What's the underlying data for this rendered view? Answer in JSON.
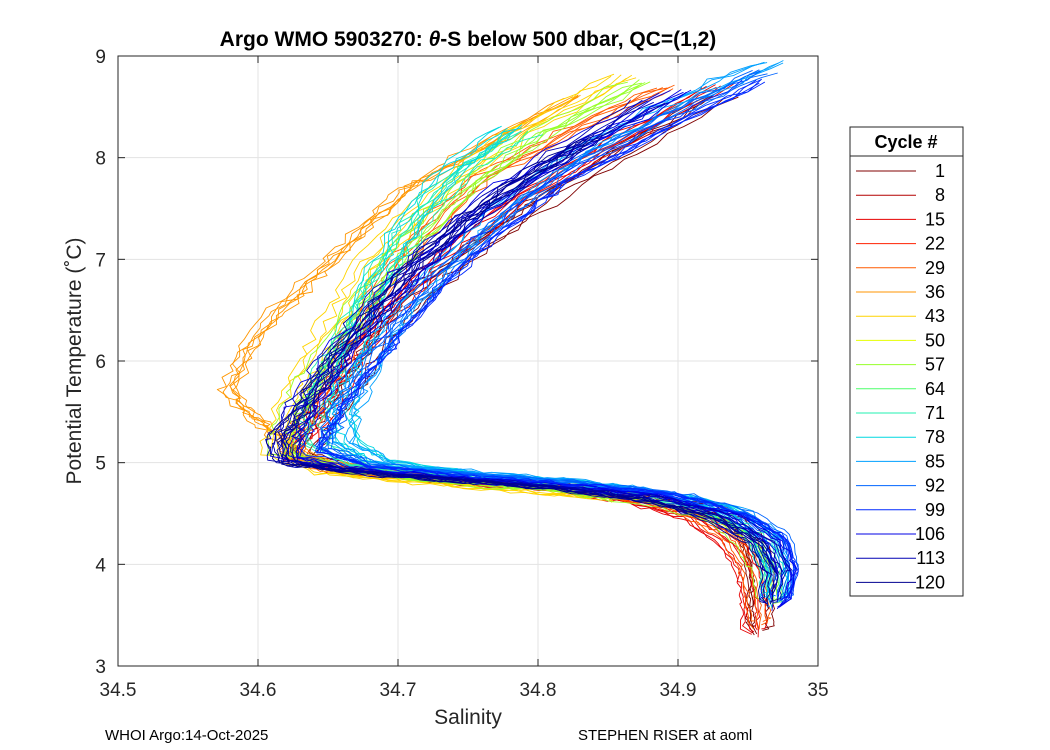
{
  "chart_data": {
    "type": "line",
    "title": "Argo WMO 5903270: θ-S below 500 dbar,  QC=(1,2)",
    "title_prefix": "Argo WMO 5903270: ",
    "title_theta": "θ",
    "title_suffix": "-S below 500 dbar,  QC=(1,2)",
    "xlabel": "Salinity",
    "ylabel": "Potential Temperature (˚C)",
    "xlim": [
      34.5,
      35.0
    ],
    "ylim": [
      3,
      9
    ],
    "xticks": [
      "34.5",
      "34.6",
      "34.7",
      "34.8",
      "34.9",
      "35"
    ],
    "yticks": [
      "3",
      "4",
      "5",
      "6",
      "7",
      "8",
      "9"
    ],
    "grid": true,
    "legend_title": "Cycle #",
    "legend_position": "right-outside",
    "legend": [
      {
        "label": "1",
        "color": "#800000"
      },
      {
        "label": "8",
        "color": "#b40000"
      },
      {
        "label": "15",
        "color": "#e60000"
      },
      {
        "label": "22",
        "color": "#ff2000"
      },
      {
        "label": "29",
        "color": "#ff5a00"
      },
      {
        "label": "36",
        "color": "#ff9600"
      },
      {
        "label": "43",
        "color": "#ffd400"
      },
      {
        "label": "50",
        "color": "#e6ff00"
      },
      {
        "label": "57",
        "color": "#96ff2a"
      },
      {
        "label": "64",
        "color": "#4cff6a"
      },
      {
        "label": "71",
        "color": "#22f0b0"
      },
      {
        "label": "78",
        "color": "#00d8e0"
      },
      {
        "label": "85",
        "color": "#00a0ff"
      },
      {
        "label": "92",
        "color": "#0064ff"
      },
      {
        "label": "99",
        "color": "#0028ff"
      },
      {
        "label": "106",
        "color": "#0000e6"
      },
      {
        "label": "113",
        "color": "#0000b4"
      },
      {
        "label": "120",
        "color": "#000090"
      }
    ],
    "groups": [
      {
        "color": "#800000",
        "points": [
          [
            34.93,
            8.6
          ],
          [
            34.86,
            8.05
          ],
          [
            34.8,
            7.55
          ],
          [
            34.75,
            7.05
          ],
          [
            34.71,
            6.6
          ],
          [
            34.685,
            6.15
          ],
          [
            34.665,
            5.75
          ],
          [
            34.645,
            5.35
          ],
          [
            34.63,
            5.1
          ],
          [
            34.67,
            4.95
          ],
          [
            34.74,
            4.85
          ],
          [
            34.82,
            4.78
          ],
          [
            34.88,
            4.7
          ],
          [
            34.92,
            4.58
          ],
          [
            34.945,
            4.4
          ],
          [
            34.955,
            4.15
          ],
          [
            34.958,
            3.85
          ],
          [
            34.958,
            3.55
          ],
          [
            34.958,
            3.35
          ]
        ]
      },
      {
        "color": "#e60000",
        "points": [
          [
            34.93,
            8.7
          ],
          [
            34.86,
            8.15
          ],
          [
            34.79,
            7.6
          ],
          [
            34.74,
            7.05
          ],
          [
            34.7,
            6.55
          ],
          [
            34.675,
            6.1
          ],
          [
            34.655,
            5.7
          ],
          [
            34.64,
            5.35
          ],
          [
            34.628,
            5.05
          ],
          [
            34.66,
            4.92
          ],
          [
            34.73,
            4.82
          ],
          [
            34.81,
            4.74
          ],
          [
            34.87,
            4.62
          ],
          [
            34.915,
            4.45
          ],
          [
            34.94,
            4.2
          ],
          [
            34.952,
            3.95
          ],
          [
            34.956,
            3.65
          ],
          [
            34.957,
            3.32
          ]
        ]
      },
      {
        "color": "#ff5a00",
        "points": [
          [
            34.89,
            8.7
          ],
          [
            34.82,
            8.25
          ],
          [
            34.76,
            7.8
          ],
          [
            34.72,
            7.3
          ],
          [
            34.69,
            6.8
          ],
          [
            34.67,
            6.3
          ],
          [
            34.65,
            5.85
          ],
          [
            34.635,
            5.45
          ],
          [
            34.622,
            5.1
          ],
          [
            34.65,
            4.93
          ],
          [
            34.72,
            4.83
          ],
          [
            34.8,
            4.76
          ],
          [
            34.86,
            4.66
          ],
          [
            34.905,
            4.52
          ],
          [
            34.935,
            4.3
          ],
          [
            34.95,
            4.0
          ],
          [
            34.955,
            3.7
          ],
          [
            34.957,
            3.4
          ]
        ]
      },
      {
        "color": "#ff9600",
        "points": [
          [
            34.82,
            8.6
          ],
          [
            34.74,
            8.0
          ],
          [
            34.7,
            7.7
          ],
          [
            34.67,
            7.3
          ],
          [
            34.64,
            6.9
          ],
          [
            34.61,
            6.5
          ],
          [
            34.585,
            6.1
          ],
          [
            34.575,
            5.7
          ],
          [
            34.59,
            5.45
          ],
          [
            34.61,
            5.25
          ],
          [
            34.63,
            5.05
          ],
          [
            34.68,
            4.92
          ],
          [
            34.75,
            4.84
          ],
          [
            34.82,
            4.78
          ],
          [
            34.88,
            4.68
          ]
        ]
      },
      {
        "color": "#ffd400",
        "points": [
          [
            34.86,
            8.8
          ],
          [
            34.79,
            8.3
          ],
          [
            34.74,
            7.8
          ],
          [
            34.7,
            7.3
          ],
          [
            34.67,
            6.8
          ],
          [
            34.65,
            6.3
          ],
          [
            34.632,
            5.85
          ],
          [
            34.618,
            5.45
          ],
          [
            34.612,
            5.1
          ],
          [
            34.65,
            4.9
          ],
          [
            34.72,
            4.8
          ],
          [
            34.79,
            4.72
          ],
          [
            34.85,
            4.65
          ]
        ]
      },
      {
        "color": "#96ff2a",
        "points": [
          [
            34.87,
            8.75
          ],
          [
            34.8,
            8.25
          ],
          [
            34.75,
            7.75
          ],
          [
            34.71,
            7.2
          ],
          [
            34.68,
            6.7
          ],
          [
            34.655,
            6.2
          ],
          [
            34.635,
            5.75
          ],
          [
            34.62,
            5.4
          ],
          [
            34.615,
            5.1
          ],
          [
            34.66,
            4.92
          ],
          [
            34.74,
            4.8
          ],
          [
            34.82,
            4.72
          ],
          [
            34.88,
            4.6
          ],
          [
            34.925,
            4.45
          ],
          [
            34.95,
            4.2
          ],
          [
            34.962,
            3.9
          ],
          [
            34.965,
            3.6
          ]
        ]
      },
      {
        "color": "#22f0b0",
        "points": [
          [
            34.79,
            8.25
          ],
          [
            34.75,
            7.9
          ],
          [
            34.72,
            7.5
          ],
          [
            34.7,
            7.1
          ],
          [
            34.68,
            6.7
          ],
          [
            34.665,
            6.3
          ],
          [
            34.65,
            5.9
          ],
          [
            34.64,
            5.55
          ],
          [
            34.64,
            5.2
          ],
          [
            34.67,
            4.98
          ],
          [
            34.74,
            4.88
          ],
          [
            34.81,
            4.8
          ],
          [
            34.87,
            4.7
          ],
          [
            34.92,
            4.55
          ],
          [
            34.955,
            4.3
          ],
          [
            34.966,
            4.0
          ],
          [
            34.968,
            3.7
          ]
        ]
      },
      {
        "color": "#00d8e0",
        "points": [
          [
            34.78,
            8.3
          ],
          [
            34.74,
            7.9
          ],
          [
            34.71,
            7.4
          ],
          [
            34.69,
            6.9
          ],
          [
            34.675,
            6.4
          ],
          [
            34.665,
            5.95
          ],
          [
            34.66,
            5.55
          ],
          [
            34.665,
            5.2
          ],
          [
            34.69,
            5.0
          ],
          [
            34.76,
            4.88
          ],
          [
            34.83,
            4.8
          ],
          [
            34.89,
            4.7
          ],
          [
            34.935,
            4.55
          ],
          [
            34.96,
            4.3
          ],
          [
            34.97,
            4.0
          ],
          [
            34.97,
            3.65
          ]
        ]
      },
      {
        "color": "#00a0ff",
        "points": [
          [
            34.97,
            8.95
          ],
          [
            34.9,
            8.55
          ],
          [
            34.83,
            8.05
          ],
          [
            34.77,
            7.45
          ],
          [
            34.73,
            6.9
          ],
          [
            34.7,
            6.4
          ],
          [
            34.68,
            5.95
          ],
          [
            34.665,
            5.55
          ],
          [
            34.66,
            5.2
          ],
          [
            34.69,
            5.0
          ],
          [
            34.76,
            4.9
          ],
          [
            34.84,
            4.8
          ],
          [
            34.9,
            4.68
          ],
          [
            34.945,
            4.5
          ],
          [
            34.97,
            4.25
          ],
          [
            34.975,
            3.95
          ],
          [
            34.97,
            3.62
          ]
        ]
      },
      {
        "color": "#0064ff",
        "points": [
          [
            34.96,
            8.85
          ],
          [
            34.89,
            8.4
          ],
          [
            34.82,
            7.9
          ],
          [
            34.77,
            7.35
          ],
          [
            34.73,
            6.85
          ],
          [
            34.7,
            6.35
          ],
          [
            34.675,
            5.9
          ],
          [
            34.655,
            5.5
          ],
          [
            34.645,
            5.15
          ],
          [
            34.68,
            4.98
          ],
          [
            34.75,
            4.88
          ],
          [
            34.83,
            4.8
          ],
          [
            34.895,
            4.7
          ],
          [
            34.945,
            4.52
          ],
          [
            34.972,
            4.28
          ],
          [
            34.978,
            3.98
          ],
          [
            34.972,
            3.65
          ]
        ]
      },
      {
        "color": "#0028ff",
        "points": [
          [
            34.95,
            8.75
          ],
          [
            34.88,
            8.25
          ],
          [
            34.81,
            7.75
          ],
          [
            34.76,
            7.2
          ],
          [
            34.72,
            6.7
          ],
          [
            34.69,
            6.2
          ],
          [
            34.665,
            5.8
          ],
          [
            34.645,
            5.4
          ],
          [
            34.635,
            5.12
          ],
          [
            34.67,
            4.96
          ],
          [
            34.745,
            4.86
          ],
          [
            34.825,
            4.78
          ],
          [
            34.89,
            4.68
          ],
          [
            34.94,
            4.5
          ],
          [
            34.968,
            4.25
          ],
          [
            34.976,
            3.95
          ],
          [
            34.97,
            3.62
          ]
        ]
      },
      {
        "color": "#0000e6",
        "points": [
          [
            34.9,
            8.65
          ],
          [
            34.83,
            8.15
          ],
          [
            34.77,
            7.65
          ],
          [
            34.725,
            7.1
          ],
          [
            34.69,
            6.6
          ],
          [
            34.66,
            6.1
          ],
          [
            34.64,
            5.7
          ],
          [
            34.625,
            5.35
          ],
          [
            34.62,
            5.05
          ],
          [
            34.66,
            4.94
          ],
          [
            34.74,
            4.84
          ],
          [
            34.82,
            4.76
          ],
          [
            34.885,
            4.66
          ],
          [
            34.935,
            4.48
          ],
          [
            34.965,
            4.22
          ],
          [
            34.974,
            3.92
          ],
          [
            34.968,
            3.58
          ]
        ]
      },
      {
        "color": "#0000b4",
        "points": [
          [
            34.88,
            8.55
          ],
          [
            34.82,
            8.05
          ],
          [
            34.765,
            7.55
          ],
          [
            34.72,
            7.05
          ],
          [
            34.685,
            6.55
          ],
          [
            34.655,
            6.05
          ],
          [
            34.635,
            5.65
          ],
          [
            34.62,
            5.3
          ],
          [
            34.618,
            5.02
          ],
          [
            34.66,
            4.93
          ],
          [
            34.735,
            4.84
          ],
          [
            34.815,
            4.76
          ],
          [
            34.88,
            4.65
          ],
          [
            34.93,
            4.47
          ],
          [
            34.962,
            4.2
          ],
          [
            34.972,
            3.9
          ]
        ]
      },
      {
        "color": "#000090",
        "points": [
          [
            34.84,
            8.2
          ],
          [
            34.79,
            7.8
          ],
          [
            34.745,
            7.35
          ],
          [
            34.705,
            6.85
          ],
          [
            34.675,
            6.35
          ],
          [
            34.65,
            5.9
          ],
          [
            34.63,
            5.5
          ],
          [
            34.615,
            5.2
          ],
          [
            34.62,
            5.0
          ],
          [
            34.66,
            4.92
          ],
          [
            34.735,
            4.83
          ],
          [
            34.81,
            4.75
          ],
          [
            34.875,
            4.64
          ],
          [
            34.925,
            4.46
          ],
          [
            34.958,
            4.2
          ],
          [
            34.968,
            3.9
          ],
          [
            34.965,
            3.6
          ]
        ]
      }
    ]
  },
  "footer": {
    "left": "WHOI Argo:14-Oct-2025",
    "right": "STEPHEN RISER at aoml"
  }
}
